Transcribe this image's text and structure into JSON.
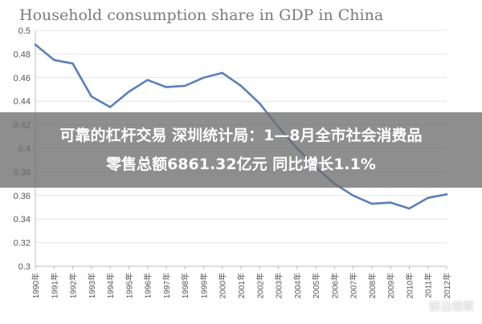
{
  "chart_data": {
    "type": "line",
    "title": "Household consumption share in GDP in China",
    "xlabel": "",
    "ylabel": "",
    "x": [
      "1990年",
      "1991年",
      "1992年",
      "1993年",
      "1994年",
      "1995年",
      "1996年",
      "1997年",
      "1998年",
      "1999年",
      "2000年",
      "2001年",
      "2002年",
      "2003年",
      "2004年",
      "2005年",
      "2006年",
      "2007年",
      "2008年",
      "2009年",
      "2010年",
      "2011年",
      "2012年"
    ],
    "series": [
      {
        "values": [
          0.488,
          0.475,
          0.472,
          0.444,
          0.435,
          0.448,
          0.458,
          0.452,
          0.453,
          0.46,
          0.464,
          0.453,
          0.438,
          0.418,
          0.4,
          0.384,
          0.37,
          0.36,
          0.353,
          0.354,
          0.349,
          0.358,
          0.361
        ],
        "color": "#5b7fb8"
      }
    ],
    "ylim": [
      0.3,
      0.5
    ],
    "yticks": [
      0.3,
      0.32,
      0.34,
      0.36,
      0.38,
      0.4,
      0.42,
      0.44,
      0.46,
      0.48,
      0.5
    ],
    "ytick_labels": [
      "0.3",
      "0.32",
      "0.34",
      "0.36",
      "0.38",
      "0.4",
      "0.42",
      "0.44",
      "0.46",
      "0.48",
      "0.5"
    ],
    "grid": true,
    "legend": "none"
  },
  "overlay": {
    "line1": "可靠的杠杆交易 深圳统计局：1—8月全市社会消费品",
    "line2": "零售总额6861.32亿元 同比增长1.1%"
  },
  "watermark": {
    "text": "前沿观察",
    "icon": "circle-logo-icon"
  }
}
